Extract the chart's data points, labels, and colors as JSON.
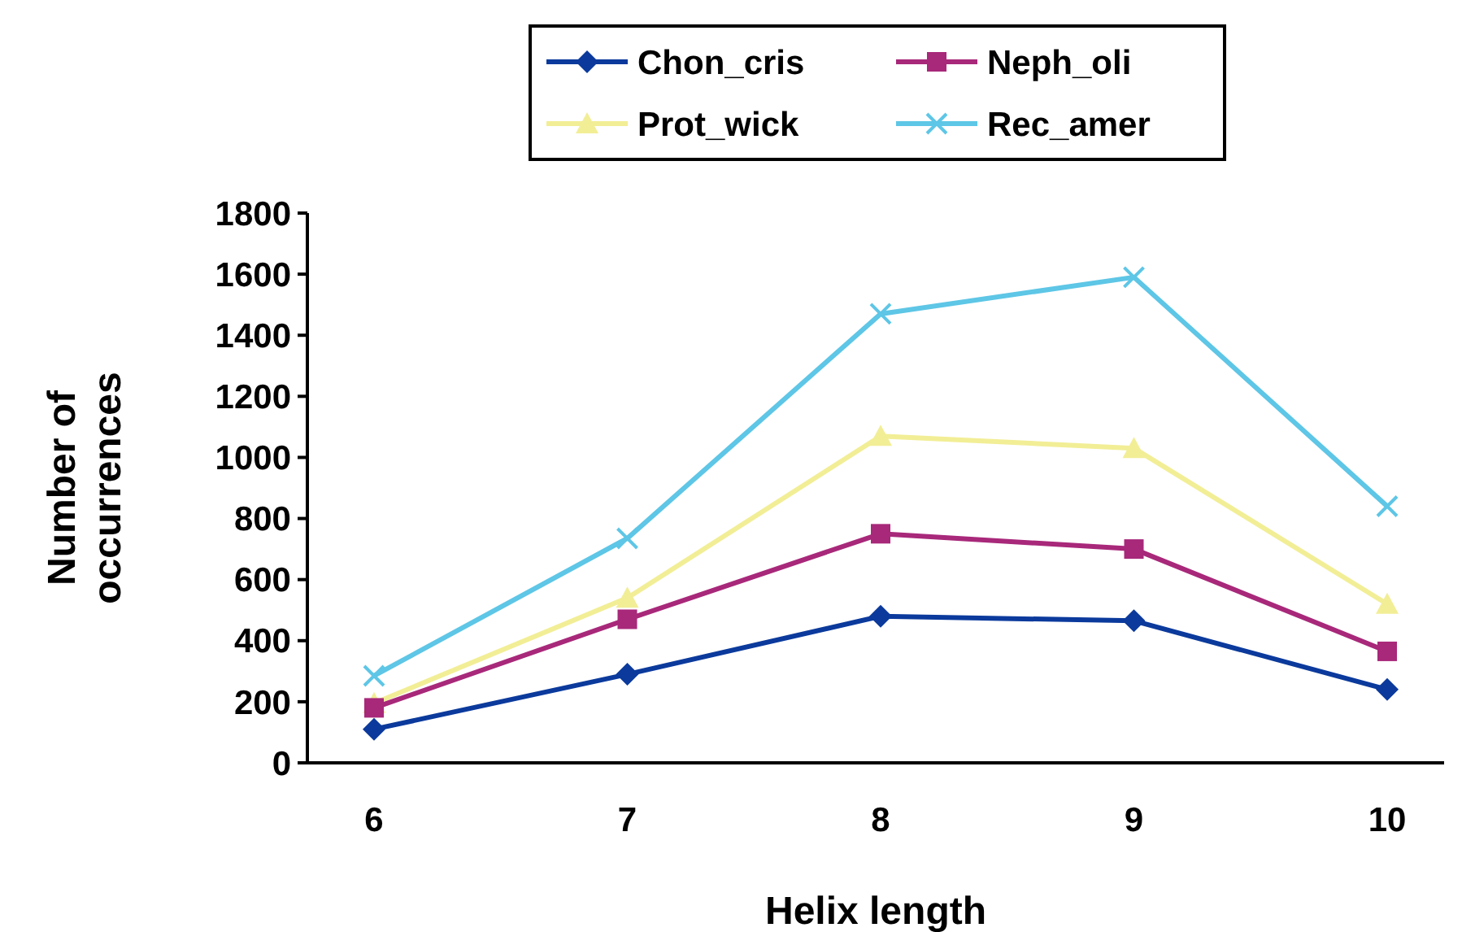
{
  "chart_data": {
    "type": "line",
    "xlabel": "Helix length",
    "ylabel": "Number of occurrences",
    "categories": [
      "6",
      "7",
      "8",
      "9",
      "10"
    ],
    "ylim": [
      0,
      1800
    ],
    "yticks": [
      0,
      200,
      400,
      600,
      800,
      1000,
      1200,
      1400,
      1600,
      1800
    ],
    "grid": false,
    "legend": "top",
    "line_style": "solid",
    "series": [
      {
        "name": "Chon_cris",
        "color": "#0b3a9c",
        "marker": "diamond",
        "values": [
          110,
          290,
          480,
          465,
          240
        ]
      },
      {
        "name": "Neph_oli",
        "color": "#a8287a",
        "marker": "square",
        "values": [
          180,
          470,
          750,
          700,
          365
        ]
      },
      {
        "name": "Prot_wick",
        "color": "#f2ee96",
        "marker": "triangle",
        "values": [
          195,
          540,
          1070,
          1030,
          520
        ]
      },
      {
        "name": "Rec_amer",
        "color": "#5ec6e6",
        "marker": "cross",
        "values": [
          285,
          735,
          1470,
          1590,
          840
        ]
      }
    ]
  }
}
